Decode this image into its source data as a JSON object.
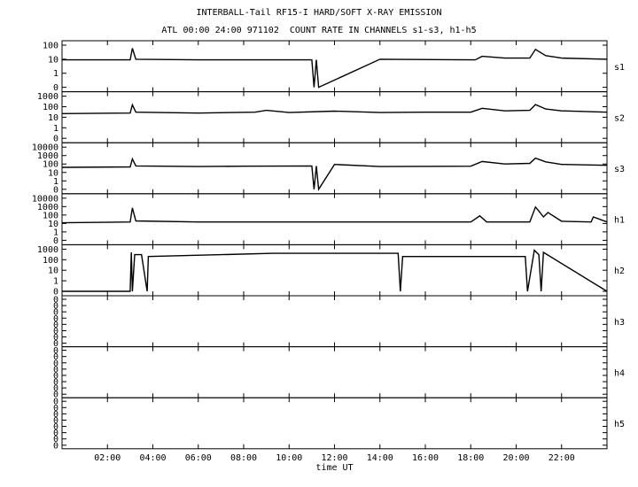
{
  "title": "INTERBALL-Tail RF15-I HARD/SOFT X-RAY EMISSION",
  "subtitle": "ATL 00:00 24:00 971102  COUNT RATE IN CHANNELS s1-s3, h1-h5",
  "chart_data": {
    "type": "line",
    "title": "INTERBALL-Tail RF15-I HARD/SOFT X-RAY EMISSION",
    "subtitle": "ATL 00:00 24:00 971102  COUNT RATE IN CHANNELS s1-s3, h1-h5",
    "xlabel": "time UT",
    "xlim": [
      0,
      24
    ],
    "x_ticks": [
      "02:00",
      "04:00",
      "06:00",
      "08:00",
      "10:00",
      "12:00",
      "14:00",
      "16:00",
      "18:00",
      "20:00",
      "22:00"
    ],
    "x_tick_hours": [
      2,
      4,
      6,
      8,
      10,
      12,
      14,
      16,
      18,
      20,
      22
    ],
    "y_scale": "log",
    "grid": false,
    "panels": [
      {
        "name": "s1",
        "y_ticks": [
          "100",
          "10",
          "1",
          "0"
        ],
        "series": [
          {
            "x": [
              0.0,
              3.0,
              3.1,
              3.25,
              6.0,
              11.0,
              11.1,
              11.2,
              11.3,
              14.0,
              18.2,
              18.5,
              19.5,
              20.6,
              20.85,
              21.3,
              22.0,
              24.0
            ],
            "y": [
              9,
              9,
              60,
              10,
              9,
              9,
              0,
              9,
              0,
              10,
              9,
              16,
              12,
              12,
              50,
              18,
              12,
              10
            ]
          }
        ]
      },
      {
        "name": "s2",
        "y_ticks": [
          "1000",
          "100",
          "10",
          "1",
          "0"
        ],
        "series": [
          {
            "x": [
              0.0,
              3.0,
              3.1,
              3.25,
              6.0,
              8.5,
              9.0,
              10.0,
              12.0,
              14.0,
              16.0,
              18.0,
              18.5,
              19.5,
              20.6,
              20.85,
              21.3,
              22.0,
              24.0
            ],
            "y": [
              22,
              25,
              150,
              30,
              25,
              30,
              45,
              28,
              38,
              28,
              30,
              30,
              70,
              40,
              45,
              160,
              60,
              40,
              30
            ]
          }
        ]
      },
      {
        "name": "s3",
        "y_ticks": [
          "10000",
          "1000",
          "100",
          "10",
          "1",
          "0"
        ],
        "series": [
          {
            "x": [
              0.0,
              3.0,
              3.1,
              3.25,
              6.0,
              8.0,
              11.0,
              11.1,
              11.2,
              11.3,
              12.0,
              14.0,
              18.0,
              18.5,
              19.5,
              20.6,
              20.85,
              21.3,
              22.0,
              24.0
            ],
            "y": [
              40,
              45,
              400,
              60,
              50,
              55,
              60,
              0,
              60,
              0,
              90,
              50,
              55,
              200,
              100,
              120,
              500,
              180,
              90,
              70
            ]
          }
        ]
      },
      {
        "name": "h1",
        "y_ticks": [
          "10000",
          "1000",
          "100",
          "10",
          "1",
          "0"
        ],
        "series": [
          {
            "x": [
              0.0,
              3.0,
              3.1,
              3.25,
              6.0,
              12.0,
              18.0,
              18.4,
              18.7,
              19.5,
              20.6,
              20.85,
              21.0,
              21.2,
              21.4,
              22.0,
              23.3,
              23.4,
              24.0
            ],
            "y": [
              12,
              15,
              700,
              20,
              15,
              15,
              15,
              80,
              15,
              15,
              15,
              900,
              300,
              60,
              200,
              18,
              15,
              60,
              15
            ]
          }
        ]
      },
      {
        "name": "h2",
        "y_ticks": [
          "1000",
          "100",
          "10",
          "1",
          "0"
        ],
        "series": [
          {
            "x": [
              0.0,
              3.0,
              3.05,
              3.1,
              3.2,
              3.5,
              3.75,
              3.8,
              9.3,
              14.8,
              14.9,
              15.0,
              20.4,
              20.5,
              20.8,
              21.0,
              21.1,
              21.2,
              24.0
            ],
            "y": [
              0,
              0,
              500,
              0,
              300,
              300,
              0,
              200,
              400,
              400,
              0,
              200,
              200,
              0,
              800,
              300,
              0,
              500,
              0
            ]
          }
        ]
      },
      {
        "name": "h3",
        "y_ticks": [
          "0",
          "0",
          "0",
          "0",
          "0",
          "0",
          "0",
          "0"
        ],
        "series": []
      },
      {
        "name": "h4",
        "y_ticks": [
          "0",
          "0",
          "0",
          "0",
          "0",
          "0",
          "0",
          "0"
        ],
        "series": []
      },
      {
        "name": "h5",
        "y_ticks": [
          "0",
          "0",
          "0",
          "0",
          "0",
          "0",
          "0",
          "0"
        ],
        "series": []
      }
    ]
  }
}
